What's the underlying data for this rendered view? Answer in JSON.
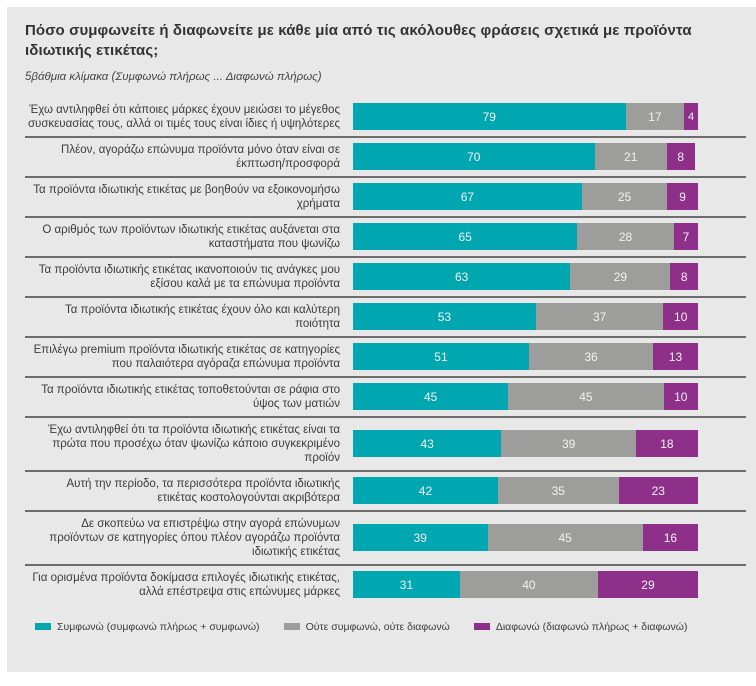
{
  "header": {
    "title": "Πόσο συμφωνείτε ή διαφωνείτε με κάθε μία από τις ακόλουθες φράσεις σχετικά με προϊόντα ιδιωτικής ετικέτας;",
    "subtitle": "5βάθμια κλίμακα (Συμφωνώ πλήρως ... Διαφωνώ πλήρως)"
  },
  "colors": {
    "agree": "#00a7b0",
    "neutral": "#9d9d9c",
    "disagree": "#8e2f89",
    "card_background": "#e8e8e9",
    "separator": "#6d6d6d",
    "label_text": "#3c3c3b",
    "value_text": "#f2f2f2"
  },
  "chart_data": {
    "type": "bar",
    "orientation": "horizontal",
    "stacked": true,
    "title": "Πόσο συμφωνείτε ή διαφωνείτε με κάθε μία από τις ακόλουθες φράσεις σχετικά με προϊόντα ιδιωτικής ετικέτας;",
    "subtitle": "5βάθμια κλίμακα (Συμφωνώ πλήρως ... Διαφωνώ πλήρως)",
    "xlim": [
      0,
      100
    ],
    "grid": false,
    "legend_position": "bottom",
    "categories": [
      "Έχω αντιληφθεί ότι κάποιες μάρκες έχουν μειώσει το μέγεθος συσκευασίας τους, αλλά οι τιμές τους είναι ίδιες ή υψηλότερες",
      "Πλέον, αγοράζω επώνυμα προϊόντα μόνο όταν είναι σε έκπτωση/προσφορά",
      "Τα προϊόντα ιδιωτικής ετικέτας με βοηθούν να εξοικονομήσω χρήματα",
      "Ο αριθμός των προϊόντων ιδιωτικής ετικέτας αυξάνεται στα καταστήματα που ψωνίζω",
      "Τα προϊόντα ιδιωτικής ετικέτας ικανοποιούν τις ανάγκες μου εξίσου καλά με τα επώνυμα προϊόντα",
      "Τα προϊόντα ιδιωτικής ετικέτας έχουν όλο και καλύτερη ποιότητα",
      "Επιλέγω premium προϊόντα ιδιωτικής ετικέτας σε κατηγορίες που παλαιότερα αγόραζα επώνυμα προϊόντα",
      "Τα προϊόντα ιδιωτικής ετικέτας τοποθετούνται σε ράφια στο ύψος των ματιών",
      "Έχω αντιληφθεί ότι τα προϊόντα ιδιωτικής ετικέτας είναι τα πρώτα που προσέχω όταν ψωνίζω κάποιο συγκεκριμένο προϊόν",
      "Αυτή την περίοδο, τα περισσότερα προϊόντα ιδιωτικής ετικέτας κοστολογούνται ακριβότερα",
      "Δε σκοπεύω να επιστρέψω στην αγορά επώνυμων προϊόντων σε κατηγορίες όπου πλέον αγοράζω προϊόντα ιδιωτικής ετικέτας",
      "Για ορισμένα προϊόντα δοκίμασα επιλογές ιδιωτικής ετικέτας, αλλά επέστρεψα στις επώνυμες μάρκες"
    ],
    "series": [
      {
        "key": "agree",
        "name": "Συμφωνώ (συμφωνώ πλήρως + συμφωνώ)",
        "color": "#00a7b0",
        "values": [
          79,
          70,
          67,
          65,
          63,
          53,
          51,
          45,
          43,
          42,
          39,
          31
        ]
      },
      {
        "key": "neutral",
        "name": "Ούτε συμφωνώ, ούτε διαφωνώ",
        "color": "#9d9d9c",
        "values": [
          17,
          21,
          25,
          28,
          29,
          37,
          36,
          45,
          39,
          35,
          45,
          40
        ]
      },
      {
        "key": "disagree",
        "name": "Διαφωνώ (διαφωνώ πλήρως + διαφωνώ)",
        "color": "#8e2f89",
        "values": [
          4,
          8,
          9,
          7,
          8,
          10,
          13,
          10,
          18,
          23,
          16,
          29
        ]
      }
    ]
  }
}
